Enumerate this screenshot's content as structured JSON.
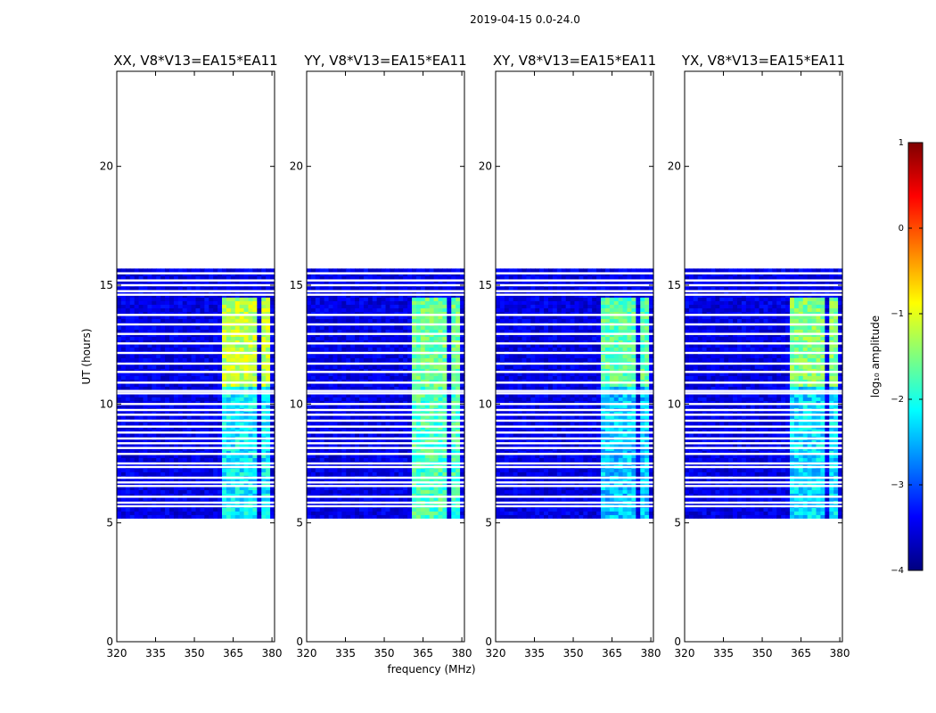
{
  "chart_data": {
    "type": "heatmap",
    "title": "2019-04-15 0.0-24.0",
    "xlabel": "frequency (MHz)",
    "ylabel": "UT (hours)",
    "xlim": [
      320,
      381
    ],
    "ylim": [
      0,
      24
    ],
    "xticks": [
      320,
      335,
      350,
      365,
      380
    ],
    "xtick_labels": [
      "320",
      "335",
      "350",
      "365",
      "380"
    ],
    "yticks": [
      0,
      5,
      10,
      15,
      20
    ],
    "ytick_labels": [
      "0",
      "5",
      "10",
      "15",
      "20"
    ],
    "data_time_range": [
      5.2,
      15.7
    ],
    "gaps_time": [
      5.7,
      5.85,
      6.1,
      6.55,
      6.7,
      6.9,
      7.35,
      7.5,
      7.9,
      8.15,
      8.35,
      8.55,
      8.8,
      9.05,
      9.3,
      9.55,
      9.75,
      10.0,
      10.45,
      10.55,
      10.9,
      11.35,
      11.7,
      12.15,
      12.55,
      12.95,
      13.35,
      13.75,
      14.6,
      14.75,
      15.0,
      15.2,
      15.5
    ],
    "rfi_channels_mhz": [
      [
        361,
        365
      ],
      [
        366,
        370
      ],
      [
        371,
        374.5
      ],
      [
        375.5,
        379.5
      ]
    ],
    "rfi_strong_time": [
      10.8,
      14.5
    ],
    "rfi_weak_time": [
      5.2,
      10.8
    ],
    "panels": [
      {
        "title": "XX, V8*V13=EA15*EA11",
        "strong_level": -1.2,
        "weak_level": -2.2
      },
      {
        "title": "YY, V8*V13=EA15*EA11",
        "strong_level": -1.6,
        "weak_level": -1.8
      },
      {
        "title": "XY, V8*V13=EA15*EA11",
        "strong_level": -1.7,
        "weak_level": -2.4
      },
      {
        "title": "YX, V8*V13=EA15*EA11",
        "strong_level": -1.5,
        "weak_level": -2.3
      }
    ],
    "background_level": -3.5,
    "colorbar": {
      "label": "log₁₀ amplitude",
      "range": [
        -4,
        1
      ],
      "ticks": [
        1,
        0,
        -1,
        -2,
        -3,
        -4
      ],
      "tick_labels": [
        "1",
        "0",
        "−1",
        "−2",
        "−3",
        "−4"
      ],
      "colormap": [
        "#00007f",
        "#0000ff",
        "#007fff",
        "#00ffff",
        "#7fff7f",
        "#ffff00",
        "#ff7f00",
        "#ff0000",
        "#7f0000"
      ]
    }
  }
}
